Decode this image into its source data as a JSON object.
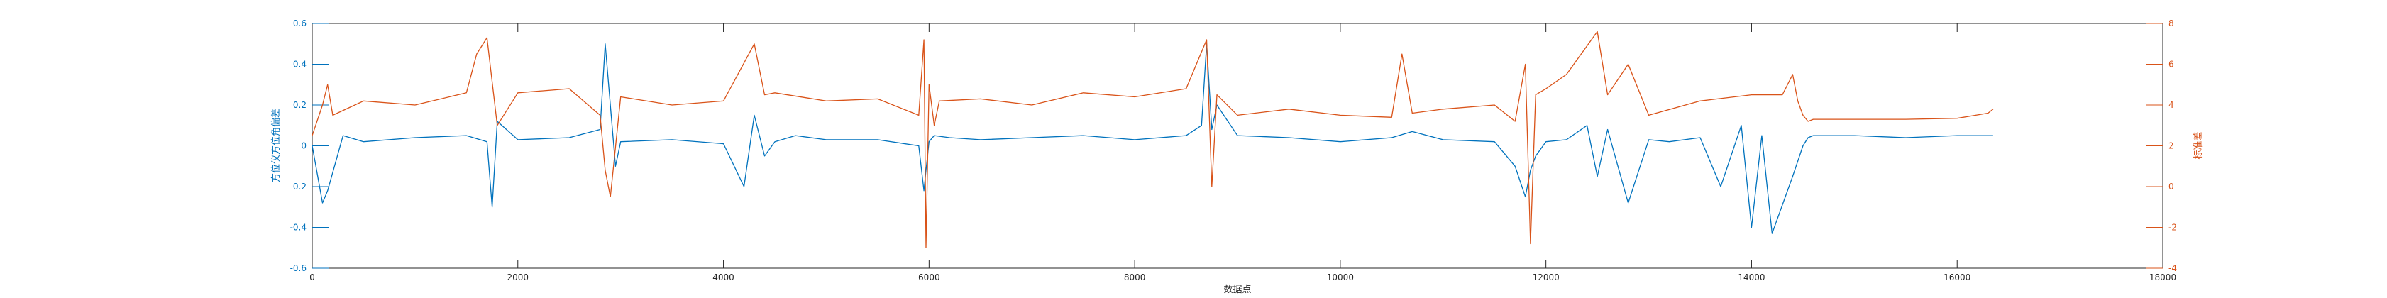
{
  "chart_data": {
    "type": "line",
    "title": "",
    "xlabel": "数据点",
    "xlim": [
      0,
      18000
    ],
    "xticks": [
      0,
      2000,
      4000,
      6000,
      8000,
      10000,
      12000,
      14000,
      16000,
      18000
    ],
    "y_left": {
      "label": "方位仪方位角偏差",
      "ylim": [
        -0.6,
        0.6
      ],
      "ticks": [
        -0.6,
        -0.4,
        -0.2,
        0,
        0.2,
        0.4,
        0.6
      ],
      "color": "#0072BD"
    },
    "y_right": {
      "label": "标准差",
      "ylim": [
        -4,
        8
      ],
      "ticks": [
        -4,
        -2,
        0,
        2,
        4,
        6,
        8
      ],
      "color": "#D95319"
    },
    "series": [
      {
        "name": "方位仪方位角偏差",
        "axis": "left",
        "color": "#0072BD",
        "x": [
          0,
          100,
          150,
          300,
          500,
          1000,
          1500,
          1700,
          1750,
          1800,
          2000,
          2500,
          2800,
          2850,
          2950,
          3000,
          3500,
          4000,
          4200,
          4300,
          4400,
          4500,
          4700,
          5000,
          5500,
          5900,
          5950,
          5970,
          6000,
          6050,
          6200,
          6500,
          7000,
          7500,
          8000,
          8500,
          8650,
          8700,
          8750,
          8800,
          9000,
          9500,
          10000,
          10500,
          10700,
          11000,
          11500,
          11700,
          11800,
          11850,
          11900,
          12000,
          12200,
          12400,
          12500,
          12600,
          12800,
          13000,
          13200,
          13500,
          13700,
          13900,
          14000,
          14100,
          14200,
          14400,
          14500,
          14550,
          14600,
          15000,
          15500,
          16000,
          16350
        ],
        "values": [
          0.0,
          -0.28,
          -0.22,
          0.05,
          0.02,
          0.04,
          0.05,
          0.02,
          -0.3,
          0.12,
          0.03,
          0.04,
          0.08,
          0.5,
          -0.1,
          0.02,
          0.03,
          0.01,
          -0.2,
          0.15,
          -0.05,
          0.02,
          0.05,
          0.03,
          0.03,
          0.0,
          -0.22,
          -0.12,
          0.02,
          0.05,
          0.04,
          0.03,
          0.04,
          0.05,
          0.03,
          0.05,
          0.1,
          0.5,
          0.08,
          0.2,
          0.05,
          0.04,
          0.02,
          0.04,
          0.07,
          0.03,
          0.02,
          -0.1,
          -0.25,
          -0.12,
          -0.05,
          0.02,
          0.03,
          0.1,
          -0.15,
          0.08,
          -0.28,
          0.03,
          0.02,
          0.04,
          -0.2,
          0.1,
          -0.4,
          0.05,
          -0.43,
          -0.15,
          0.0,
          0.04,
          0.05,
          0.05,
          0.04,
          0.05,
          0.05
        ]
      },
      {
        "name": "标准差",
        "axis": "right",
        "color": "#D95319",
        "x": [
          0,
          100,
          150,
          200,
          500,
          1000,
          1500,
          1600,
          1700,
          1800,
          2000,
          2500,
          2800,
          2850,
          2900,
          3000,
          3500,
          4000,
          4300,
          4400,
          4500,
          5000,
          5500,
          5900,
          5950,
          5970,
          6000,
          6050,
          6100,
          6500,
          7000,
          7500,
          8000,
          8500,
          8700,
          8750,
          8800,
          9000,
          9500,
          10000,
          10500,
          10600,
          10700,
          11000,
          11500,
          11700,
          11800,
          11850,
          11900,
          12000,
          12200,
          12500,
          12600,
          12800,
          13000,
          13500,
          14000,
          14300,
          14400,
          14450,
          14500,
          14550,
          14600,
          15000,
          15500,
          16000,
          16300,
          16350
        ],
        "values": [
          2.5,
          4.0,
          5.0,
          3.5,
          4.2,
          4.0,
          4.6,
          6.5,
          7.3,
          3.0,
          4.6,
          4.8,
          3.5,
          0.8,
          -0.5,
          4.4,
          4.0,
          4.2,
          7.0,
          4.5,
          4.6,
          4.2,
          4.3,
          3.5,
          7.2,
          -3.0,
          5.0,
          3.0,
          4.2,
          4.3,
          4.0,
          4.6,
          4.4,
          4.8,
          7.2,
          0.0,
          4.5,
          3.5,
          3.8,
          3.5,
          3.4,
          6.5,
          3.6,
          3.8,
          4.0,
          3.2,
          6.0,
          -2.8,
          4.5,
          4.8,
          5.5,
          7.6,
          4.5,
          6.0,
          3.5,
          4.2,
          4.5,
          4.5,
          5.5,
          4.2,
          3.5,
          3.2,
          3.3,
          3.3,
          3.3,
          3.35,
          3.6,
          3.8
        ]
      }
    ]
  }
}
